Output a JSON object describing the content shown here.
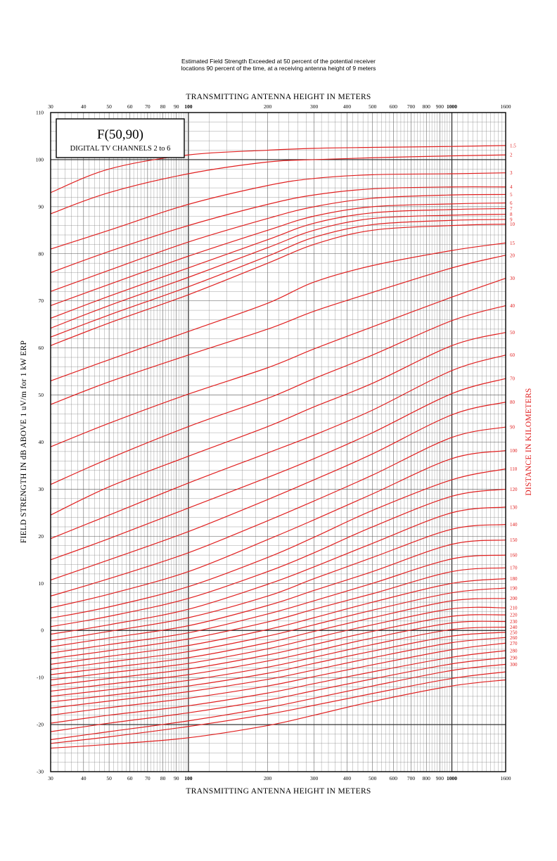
{
  "header": {
    "line1": "Estimated Field Strength Exceeded at 50 percent of the potential receiver",
    "line2": "locations 90 percent of the time, at a receiving antenna height of 9 meters"
  },
  "legend_box": {
    "title": "F(50,90)",
    "subtitle": "DIGITAL TV CHANNELS 2 to 6"
  },
  "chart_data": {
    "type": "line",
    "title": "Estimated Field Strength Exceeded at 50 percent of the potential receiver locations 90 percent of the time, at a receiving antenna height of 9 meters",
    "xlabel": "TRANSMITTING ANTENNA HEIGHT IN METERS",
    "ylabel": "FIELD STRENGTH IN dB ABOVE 1 uV/m for 1 kW ERP",
    "y2label": "DISTANCE IN KILOMETERS",
    "x_scale": "log",
    "xlim": [
      30,
      1600
    ],
    "ylim": [
      -30,
      110
    ],
    "x_tick_labels": [
      "30",
      "40",
      "50",
      "60",
      "70",
      "80",
      "90",
      "100",
      "200",
      "300",
      "400",
      "500",
      "600",
      "700",
      "800",
      "900",
      "1000",
      "1600"
    ],
    "y_tick_labels": [
      "110",
      "100",
      "90",
      "80",
      "70",
      "60",
      "50",
      "40",
      "30",
      "20",
      "10",
      "0",
      "-10",
      "-20",
      "-30"
    ],
    "grid": true,
    "x": [
      30,
      50,
      100,
      200,
      300,
      500,
      1000,
      1600
    ],
    "series": [
      {
        "name": "1.5",
        "values": [
          93,
          98,
          101,
          102,
          102.4,
          102.6,
          102.8,
          103
        ]
      },
      {
        "name": "2",
        "values": [
          88.5,
          93,
          97,
          99.5,
          100,
          100.4,
          100.8,
          101
        ]
      },
      {
        "name": "3",
        "values": [
          81,
          85,
          90.5,
          94.5,
          96,
          96.8,
          97,
          97.2
        ]
      },
      {
        "name": "4",
        "values": [
          76,
          80.5,
          86,
          90.5,
          92.5,
          93.8,
          94.2,
          94.2
        ]
      },
      {
        "name": "5",
        "values": [
          72,
          76.5,
          82.5,
          87.5,
          90,
          91.8,
          92.5,
          92.6
        ]
      },
      {
        "name": "6",
        "values": [
          69,
          73.5,
          79.5,
          85,
          88,
          90,
          90.6,
          90.8
        ]
      },
      {
        "name": "7",
        "values": [
          66.3,
          71,
          77,
          83,
          86.5,
          88.7,
          89.4,
          89.6
        ]
      },
      {
        "name": "8",
        "values": [
          64.2,
          69,
          75,
          81.3,
          85,
          87.5,
          88.2,
          88.4
        ]
      },
      {
        "name": "9",
        "values": [
          62.3,
          67,
          73,
          79.5,
          83.5,
          86.2,
          87.1,
          87.3
        ]
      },
      {
        "name": "10",
        "values": [
          60.5,
          65.3,
          71.3,
          78,
          82,
          85,
          86,
          86.3
        ]
      },
      {
        "name": "15",
        "values": [
          53,
          57.5,
          63.5,
          69.5,
          74,
          77.5,
          80.7,
          82.3
        ]
      },
      {
        "name": "20",
        "values": [
          48,
          52.8,
          58.5,
          64,
          67.8,
          71.8,
          77,
          79.7
        ]
      },
      {
        "name": "30",
        "values": [
          39,
          44,
          50.2,
          55.8,
          59.8,
          64.5,
          70.8,
          74.8
        ]
      },
      {
        "name": "40",
        "values": [
          31,
          36.5,
          43.3,
          49.3,
          53.5,
          58.5,
          65.8,
          69
        ]
      },
      {
        "name": "50",
        "values": [
          24.5,
          30.5,
          37,
          43.3,
          47.5,
          52.5,
          60.5,
          63.3
        ]
      },
      {
        "name": "60",
        "values": [
          19.5,
          24.5,
          31.3,
          37.7,
          41.5,
          46.8,
          55.2,
          58.5
        ]
      },
      {
        "name": "70",
        "values": [
          15,
          19.5,
          26,
          32.5,
          36.5,
          42,
          50.3,
          53.5
        ]
      },
      {
        "name": "80",
        "values": [
          10.7,
          15,
          21,
          27.8,
          32,
          37.5,
          45.8,
          48.5
        ]
      },
      {
        "name": "90",
        "values": [
          7.3,
          11,
          16.5,
          23.3,
          27.5,
          33,
          41,
          43.2
        ]
      },
      {
        "name": "100",
        "values": [
          4.8,
          7.7,
          12.5,
          19.3,
          23.5,
          29,
          36.5,
          38.2
        ]
      },
      {
        "name": "110",
        "values": [
          2.6,
          5,
          9.3,
          15.5,
          19.8,
          25.5,
          32,
          34.3
        ]
      },
      {
        "name": "120",
        "values": [
          0.8,
          3,
          6.8,
          12.5,
          16.5,
          22,
          28.5,
          30
        ]
      },
      {
        "name": "130",
        "values": [
          -0.8,
          1.2,
          4.5,
          9.8,
          13.5,
          18.5,
          25,
          26.2
        ]
      },
      {
        "name": "140",
        "values": [
          -2.2,
          -0.2,
          2.7,
          7.3,
          11,
          15.5,
          21.5,
          22.5
        ]
      },
      {
        "name": "150",
        "values": [
          -3.5,
          -1.6,
          1,
          5.3,
          8.5,
          12.5,
          18.3,
          19.2
        ]
      },
      {
        "name": "160",
        "values": [
          -4.8,
          -3,
          -0.5,
          3.5,
          6.3,
          10,
          15.2,
          16
        ]
      },
      {
        "name": "170",
        "values": [
          -6,
          -4.3,
          -1.8,
          1.8,
          4.5,
          7.8,
          12.5,
          13.3
        ]
      },
      {
        "name": "180",
        "values": [
          -7.2,
          -5.5,
          -3.2,
          0.2,
          2.7,
          6,
          10,
          11
        ]
      },
      {
        "name": "190",
        "values": [
          -8.3,
          -6.7,
          -4.5,
          -1.2,
          1.2,
          4.3,
          8,
          9
        ]
      },
      {
        "name": "200",
        "values": [
          -9.4,
          -7.9,
          -5.8,
          -2.6,
          -0.2,
          2.7,
          6.3,
          6.8
        ]
      },
      {
        "name": "210",
        "values": [
          -10.5,
          -9,
          -7,
          -3.9,
          -1.6,
          1.2,
          4.6,
          4.8
        ]
      },
      {
        "name": "220",
        "values": [
          -11.7,
          -10.2,
          -8.2,
          -5.2,
          -3,
          -0.2,
          3,
          3.3
        ]
      },
      {
        "name": "230",
        "values": [
          -12.9,
          -11.4,
          -9.4,
          -6.5,
          -4.4,
          -1.6,
          1.6,
          1.9
        ]
      },
      {
        "name": "240",
        "values": [
          -14,
          -12.6,
          -10.6,
          -7.8,
          -5.7,
          -3,
          0.2,
          0.7
        ]
      },
      {
        "name": "250",
        "values": [
          -15.2,
          -13.8,
          -11.8,
          -9.1,
          -7,
          -4.4,
          -1.2,
          -0.4
        ]
      },
      {
        "name": "260",
        "values": [
          -16.5,
          -15,
          -13,
          -10.4,
          -8.4,
          -5.8,
          -2.6,
          -1.5
        ]
      },
      {
        "name": "270",
        "values": [
          -18,
          -16.4,
          -14.4,
          -11.8,
          -9.8,
          -7.3,
          -4.1,
          -2.7
        ]
      },
      {
        "name": "280",
        "values": [
          -19.7,
          -18,
          -16,
          -13.3,
          -11.3,
          -8.8,
          -5.7,
          -4.3
        ]
      },
      {
        "name": "290",
        "values": [
          -21.5,
          -19.7,
          -17.5,
          -14.8,
          -12.8,
          -10.3,
          -7.1,
          -5.8
        ]
      },
      {
        "name": "300",
        "values": [
          -23.2,
          -21.5,
          -19.2,
          -16.4,
          -14.4,
          -11.8,
          -8.5,
          -7.2
        ]
      },
      {
        "name": "",
        "values": [
          -24,
          -22.6,
          -20.4,
          -17.8,
          -15.9,
          -13.4,
          -10.2,
          -8.8
        ]
      },
      {
        "name": "",
        "values": [
          -25,
          -24.2,
          -22.8,
          -20.2,
          -18,
          -15.1,
          -11.8,
          -10.5
        ]
      }
    ]
  }
}
